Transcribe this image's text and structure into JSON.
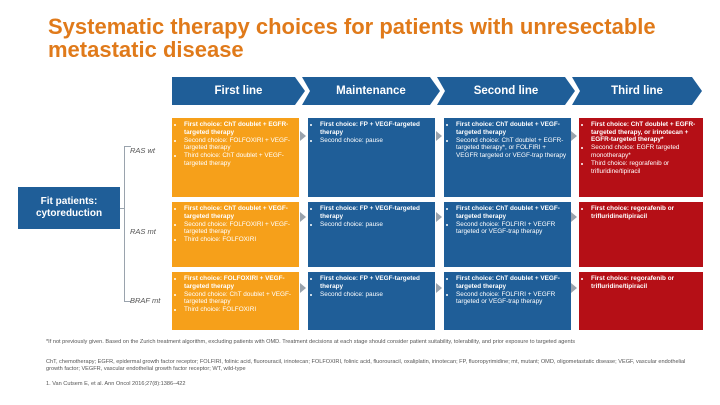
{
  "title": "Systematic therapy choices for patients with unresectable metastatic disease",
  "headers": [
    "First line",
    "Maintenance",
    "Second line",
    "Third line"
  ],
  "fit_label_1": "Fit patients:",
  "fit_label_2": "cytoreduction",
  "rows": [
    {
      "label": "RAS wt",
      "first": [
        "First choice: ChT doublet + EGFR-targeted therapy",
        "Second choice: FOLFOXIRI + VEGF-targeted therapy",
        "Third choice: ChT doublet + VEGF-targeted therapy"
      ],
      "maintenance": [
        "First choice: FP + VEGF-targeted therapy",
        "Second choice: pause"
      ],
      "second": [
        "First choice: ChT doublet + VEGF-targeted therapy",
        "Second choice: ChT doublet + EGFR-targeted therapy*, or FOLFIRI + VEGFR targeted or VEGF-trap therapy"
      ],
      "third": [
        "First choice: ChT doublet + EGFR-targeted therapy, or irinotecan + EGFR-targeted therapy*",
        "Second choice: EGFR targeted monotherapy*",
        "Third choice: regorafenib or trifluridine/tipiracil"
      ]
    },
    {
      "label": "RAS mt",
      "first": [
        "First choice: ChT doublet + VEGF-targeted therapy",
        "Second choice: FOLFOXIRI + VEGF-targeted therapy",
        "Third choice: FOLFOXIRI"
      ],
      "maintenance": [
        "First choice: FP + VEGF-targeted therapy",
        "Second choice: pause"
      ],
      "second": [
        "First choice: ChT doublet + VEGF-targeted therapy",
        "Second choice: FOLFIRI + VEGFR targeted or VEGF-trap therapy"
      ],
      "third": [
        "First choice: regorafenib or trifluridine/tipiracil"
      ]
    },
    {
      "label": "BRAF mt",
      "first": [
        "First choice: FOLFOXIRI + VEGF-targeted therapy",
        "Second choice: ChT doublet + VEGF-targeted therapy",
        "Third choice: FOLFOXIRI"
      ],
      "maintenance": [
        "First choice: FP + VEGF-targeted therapy",
        "Second choice: pause"
      ],
      "second": [
        "First choice: ChT doublet + VEGF-targeted therapy",
        "Second choice: FOLFIRI + VEGFR targeted or VEGF-trap therapy"
      ],
      "third": [
        "First choice: regorafenib or trifluridine/tipiracil"
      ]
    }
  ],
  "footnotes": {
    "f1": "*If not previously given. Based on the Zurich treatment algorithm, excluding patients with OMD. Treatment decisions at each stage should consider patient suitability, tolerability, and prior exposure to targeted agents",
    "f2": "ChT, chemotherapy; EGFR, epidermal growth factor receptor; FOLFIRI, folinic acid, fluorouracil, irinotecan; FOLFOXIRI, folinic acid, fluorouracil, oxaliplatin, irinotecan; FP, fluoropyrimidine; mt, mutant; OMD, oligometastatic disease; VEGF, vascular endothelial growth factor; VEGFR, vascular endothelial growth factor receptor; WT, wild-type",
    "f3": "1. Van Cutsem E, et al. Ann Oncol 2016;27(8):1386–422"
  },
  "colors": {
    "title": "#e07a1a",
    "header": "#1f5e98",
    "first": "#f6a01a",
    "maintenance": "#1f5e98",
    "second": "#1f5e98",
    "third": "#b50f16"
  }
}
